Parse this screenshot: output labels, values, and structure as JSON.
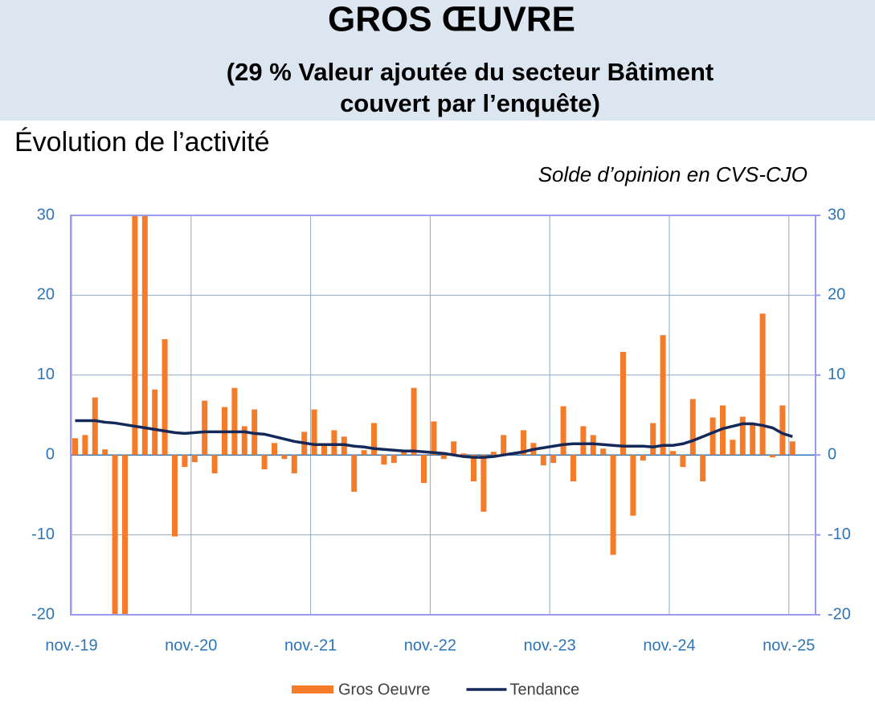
{
  "header": {
    "title": "GROS ŒUVRE",
    "subtitle_line1": "(29 % Valeur ajoutée du secteur Bâtiment",
    "subtitle_line2": "couvert par l’enquête)"
  },
  "section_title": "Évolution de l’activité",
  "chart_data": {
    "type": "bar-line",
    "subtitle": "Solde d’opinion en CVS-CJO",
    "categories": [
      "nov.-19",
      null,
      null,
      null,
      null,
      null,
      null,
      null,
      null,
      null,
      null,
      null,
      "nov.-20",
      null,
      null,
      null,
      null,
      null,
      null,
      null,
      null,
      null,
      null,
      null,
      "nov.-21",
      null,
      null,
      null,
      null,
      null,
      null,
      null,
      null,
      null,
      null,
      null,
      "nov.-22",
      null,
      null,
      null,
      null,
      null,
      null,
      null,
      null,
      null,
      null,
      null,
      "nov.-23",
      null,
      null,
      null,
      null,
      null,
      null,
      null,
      null,
      null,
      null,
      null,
      "nov.-24",
      null,
      null,
      null,
      null,
      null,
      null,
      null,
      null,
      null,
      null,
      null,
      "nov.-25"
    ],
    "series": [
      {
        "name": "Gros Oeuvre",
        "kind": "bar",
        "color": "#f47b2a",
        "values": [
          2.1,
          2.5,
          7.2,
          0.7,
          -20,
          -20,
          30,
          30,
          8.2,
          14.5,
          -10.2,
          -1.5,
          -0.9,
          6.8,
          -2.3,
          6,
          8.4,
          3.6,
          5.7,
          -1.8,
          1.5,
          -0.5,
          -2.3,
          2.9,
          5.7,
          1.3,
          3.1,
          2.3,
          -4.6,
          0.6,
          4,
          -1.2,
          -1,
          0.6,
          8.4,
          -3.5,
          4.2,
          -0.5,
          1.7,
          0.2,
          -3.3,
          -7.1,
          0.4,
          2.5,
          0.3,
          3.1,
          1.5,
          -1.3,
          -1,
          6.1,
          -3.3,
          3.6,
          2.5,
          0.8,
          -12.5,
          12.9,
          -7.6,
          -0.7,
          4,
          15,
          0.5,
          -1.5,
          7,
          -3.3,
          4.7,
          6.2,
          1.9,
          4.8,
          4,
          17.7,
          -0.3,
          6.2,
          1.7
        ]
      },
      {
        "name": "Tendance",
        "kind": "line",
        "color": "#14285a",
        "values": [
          4.3,
          4.3,
          4.3,
          4.1,
          4.0,
          3.8,
          3.6,
          3.4,
          3.2,
          3.0,
          2.8,
          2.7,
          2.8,
          2.9,
          2.9,
          2.9,
          2.9,
          2.9,
          2.7,
          2.6,
          2.3,
          2.0,
          1.7,
          1.5,
          1.3,
          1.3,
          1.3,
          1.3,
          1.1,
          1.0,
          0.8,
          0.7,
          0.6,
          0.5,
          0.5,
          0.4,
          0.3,
          0.2,
          0.0,
          -0.2,
          -0.3,
          -0.3,
          -0.2,
          0.0,
          0.2,
          0.4,
          0.7,
          0.9,
          1.1,
          1.3,
          1.4,
          1.4,
          1.4,
          1.3,
          1.2,
          1.1,
          1.1,
          1.1,
          1.0,
          1.2,
          1.2,
          1.4,
          1.8,
          2.3,
          2.8,
          3.3,
          3.6,
          3.9,
          3.9,
          3.7,
          3.4,
          2.7,
          2.3
        ]
      }
    ],
    "ylim": [
      -20,
      30
    ],
    "yticks": [
      -20,
      -10,
      0,
      10,
      20,
      30
    ],
    "y2lim": [
      -20,
      30
    ],
    "y2ticks": [
      -20,
      -10,
      0,
      10,
      20,
      30
    ],
    "grid": true,
    "legend": "bottom"
  }
}
